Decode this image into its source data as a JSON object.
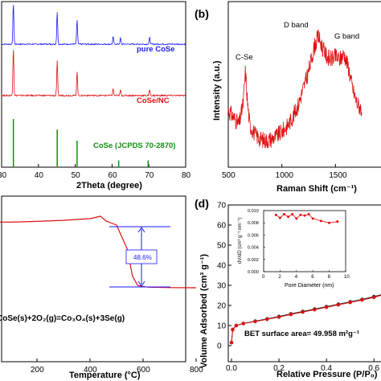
{
  "chart_data": [
    {
      "panel": "a",
      "type": "line",
      "xlabel": "2Theta (degree)",
      "xlim": [
        30,
        80
      ],
      "xticks": [
        "30",
        "40",
        "50",
        "60",
        "70",
        "80"
      ],
      "series": [
        {
          "name": "pure CoSe",
          "color": "#1a1aff",
          "peaks": [
            {
              "x": 33.2,
              "h": 1.0
            },
            {
              "x": 45.1,
              "h": 0.78
            },
            {
              "x": 50.5,
              "h": 0.58
            },
            {
              "x": 60.3,
              "h": 0.18
            },
            {
              "x": 62.3,
              "h": 0.15
            },
            {
              "x": 70.2,
              "h": 0.16
            }
          ]
        },
        {
          "name": "CoSe/NC",
          "color": "#dd1111",
          "peaks": [
            {
              "x": 33.2,
              "h": 1.0
            },
            {
              "x": 45.1,
              "h": 0.72
            },
            {
              "x": 50.5,
              "h": 0.5
            },
            {
              "x": 60.3,
              "h": 0.14
            },
            {
              "x": 62.3,
              "h": 0.12
            },
            {
              "x": 70.2,
              "h": 0.12
            }
          ]
        },
        {
          "name": "CoSe (JCPDS 70-2870)",
          "color": "#109010",
          "peaks": [
            {
              "x": 33.2,
              "h": 1.0
            },
            {
              "x": 45.1,
              "h": 0.78
            },
            {
              "x": 50.5,
              "h": 0.55
            },
            {
              "x": 61.8,
              "h": 0.14
            },
            {
              "x": 69.8,
              "h": 0.14
            }
          ]
        }
      ]
    },
    {
      "panel": "b",
      "type": "line",
      "xlabel": "Raman Shift (cm⁻¹)",
      "ylabel": "Intensity (a.u.)",
      "xlim": [
        500,
        2000
      ],
      "xticks": [
        "500",
        "1000",
        "1500"
      ],
      "annotations": [
        "C-Se",
        "D band",
        "G band"
      ],
      "series": [
        {
          "color": "#dd1111",
          "x": [
            500,
            550,
            600,
            640,
            660,
            680,
            700,
            750,
            800,
            850,
            900,
            950,
            1000,
            1050,
            1100,
            1150,
            1200,
            1250,
            1300,
            1340,
            1380,
            1420,
            1460,
            1500,
            1540,
            1580,
            1620,
            1660,
            1700,
            1750
          ],
          "y": [
            0.35,
            0.3,
            0.25,
            0.4,
            0.62,
            0.4,
            0.25,
            0.18,
            0.15,
            0.14,
            0.15,
            0.17,
            0.2,
            0.24,
            0.3,
            0.38,
            0.5,
            0.62,
            0.78,
            0.86,
            0.78,
            0.72,
            0.7,
            0.72,
            0.7,
            0.74,
            0.65,
            0.5,
            0.4,
            0.35
          ]
        }
      ]
    },
    {
      "panel": "c",
      "type": "line",
      "xlabel": "Temperature (°C)",
      "xlim": [
        0,
        800
      ],
      "xticks": [
        "200",
        "400",
        "600",
        "800"
      ],
      "annotations": [
        "48.6%",
        "CoSe(s)+2O₂(g)=Co₃O₄(s)+3Se(g)"
      ],
      "series": [
        {
          "color": "#dd1111",
          "x": [
            0,
            100,
            200,
            300,
            400,
            440,
            460,
            500,
            540,
            560,
            580,
            620,
            700,
            800
          ],
          "y": [
            100.0,
            99.6,
            100.2,
            101.0,
            102.2,
            104.0,
            100.5,
            97.5,
            80.0,
            60.0,
            53.0,
            51.8,
            51.5,
            51.4
          ]
        }
      ]
    },
    {
      "panel": "d",
      "type": "line",
      "xlabel": "Relative Pressure (P/P₀)",
      "ylabel": "Volume Adsorbed (cm³ g⁻¹)",
      "ylim": [
        0,
        70
      ],
      "yticks": [
        "0",
        "10",
        "20",
        "30",
        "40",
        "50",
        "60",
        "70"
      ],
      "xticks": [
        "0.0",
        "0.2",
        "0.4",
        "0.6"
      ],
      "annotations": [
        "BET surface area= 49.958 m²g⁻¹"
      ],
      "series": [
        {
          "color": "#222222",
          "x": [
            0.0,
            0.005,
            0.02,
            0.05,
            0.1,
            0.15,
            0.2,
            0.25,
            0.3,
            0.35,
            0.4,
            0.45,
            0.5,
            0.55,
            0.6,
            0.65
          ],
          "y": [
            1.5,
            8.0,
            10.0,
            11.0,
            12.2,
            13.3,
            14.5,
            15.8,
            17.0,
            18.2,
            19.4,
            20.6,
            21.8,
            23.0,
            24.4,
            26.0
          ]
        },
        {
          "color": "#dd1111",
          "x": [
            0.0,
            0.005,
            0.02,
            0.05,
            0.1,
            0.15,
            0.2,
            0.25,
            0.3,
            0.35,
            0.4,
            0.45,
            0.5,
            0.55,
            0.6,
            0.65
          ],
          "y": [
            1.5,
            8.0,
            10.0,
            11.0,
            12.0,
            13.1,
            14.2,
            15.5,
            16.7,
            17.9,
            19.1,
            20.3,
            21.5,
            22.7,
            24.0,
            25.7
          ]
        }
      ],
      "inset": {
        "ylabel": "dV/dD (cm³ g⁻¹ nm⁻¹)",
        "xlabel": "Pore Diameter (nm)",
        "xlim": [
          0,
          10
        ],
        "ylim": [
          0.0,
          0.01
        ],
        "xticks": [
          "0",
          "2",
          "4",
          "6",
          "8",
          "10"
        ],
        "yticks": [
          "0.000",
          "0.002",
          "0.004",
          "0.006",
          "0.008",
          "0.010"
        ],
        "series": [
          {
            "color": "#dd1111",
            "x": [
              1.5,
              2.0,
              2.5,
              3.0,
              3.5,
              4.0,
              4.5,
              5.0,
              5.5,
              6.0,
              7.0,
              8.0,
              9.0
            ],
            "y": [
              0.0093,
              0.0088,
              0.0094,
              0.009,
              0.0094,
              0.0087,
              0.0093,
              0.0092,
              0.0094,
              0.0087,
              0.0083,
              0.008,
              0.0082
            ]
          }
        ]
      }
    }
  ],
  "panel_labels": {
    "b": "(b)",
    "d": "(d)"
  }
}
